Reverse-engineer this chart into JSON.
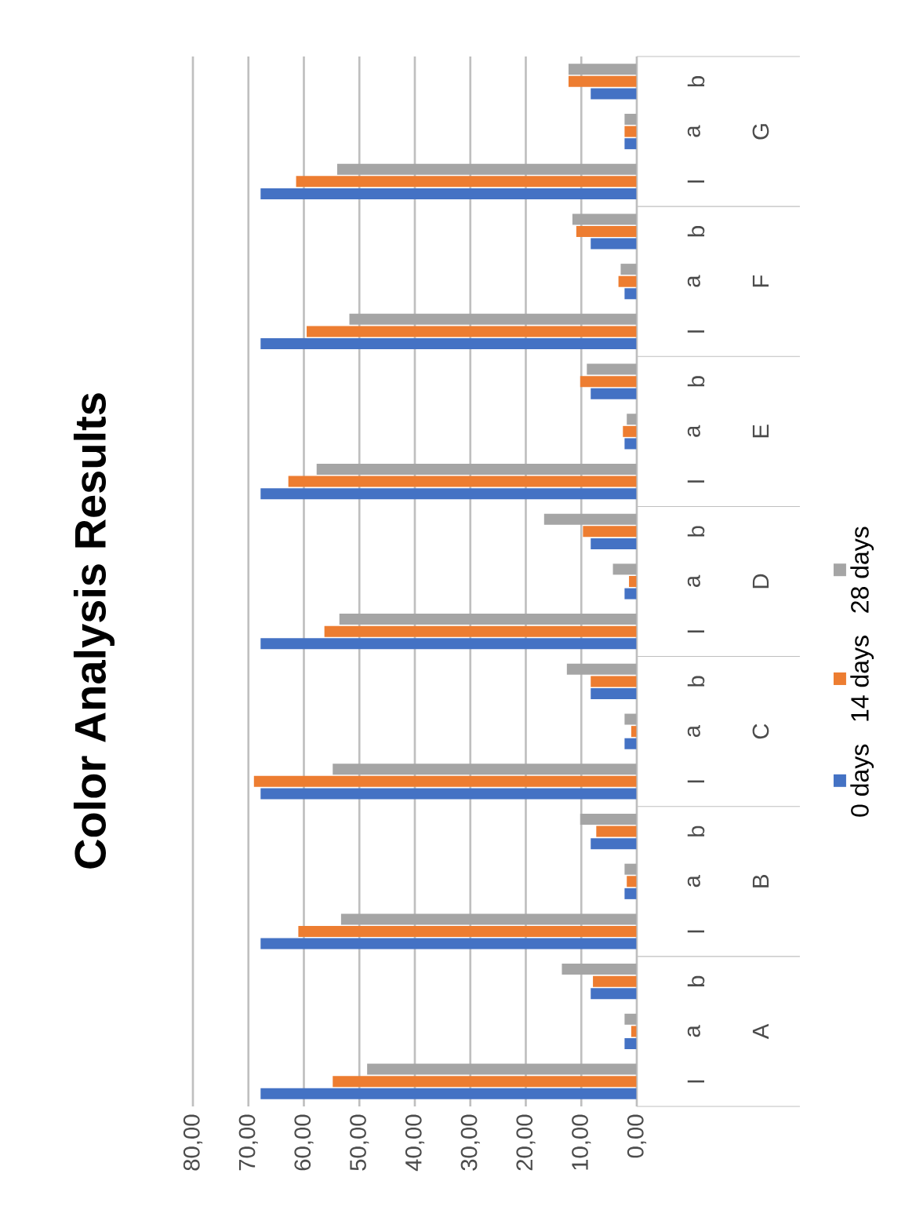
{
  "chart_data": {
    "type": "bar",
    "orientation": "horizontal",
    "title": "Color Analysis Results",
    "categories": [
      "b",
      "a",
      "l",
      "b",
      "a",
      "l",
      "b",
      "a",
      "l",
      "b",
      "a",
      "l",
      "b",
      "a",
      "l",
      "b",
      "a",
      "l",
      "b",
      "a",
      "l"
    ],
    "annotations": [
      "G",
      "F",
      "E",
      "D",
      "C",
      "B",
      "A"
    ],
    "series": [
      {
        "name": "0 days",
        "color": "#4472c4",
        "values": [
          8.3,
          2.2,
          67.8,
          8.3,
          2.2,
          67.8,
          8.3,
          2.2,
          67.8,
          8.3,
          2.2,
          67.8,
          8.3,
          2.2,
          67.8,
          8.3,
          2.2,
          67.8,
          8.3,
          2.2,
          67.8
        ]
      },
      {
        "name": "14 days",
        "color": "#ed7d31",
        "values": [
          12.3,
          2.2,
          61.4,
          10.9,
          3.3,
          59.5,
          10.2,
          2.5,
          62.8,
          9.7,
          1.4,
          56.3,
          8.3,
          1.0,
          69.0,
          7.3,
          1.8,
          61.0,
          7.9,
          1.0,
          54.8
        ]
      },
      {
        "name": "28 days",
        "color": "#a5a5a5",
        "values": [
          12.3,
          2.2,
          54.0,
          11.6,
          2.9,
          51.8,
          9.0,
          1.8,
          57.7,
          16.7,
          4.3,
          53.6,
          12.6,
          2.2,
          54.8,
          10.2,
          2.2,
          53.3,
          13.5,
          2.2,
          48.6
        ]
      }
    ],
    "xlim": [
      80,
      0
    ],
    "xticks": [
      {
        "value": 0,
        "label": "0,00"
      },
      {
        "value": 10,
        "label": "10,00"
      },
      {
        "value": 20,
        "label": "20,00"
      },
      {
        "value": 30,
        "label": "30,00"
      },
      {
        "value": 40,
        "label": "40,00"
      },
      {
        "value": 50,
        "label": "50,00"
      },
      {
        "value": 60,
        "label": "60,00"
      },
      {
        "value": 70,
        "label": "70,00"
      },
      {
        "value": 80,
        "label": "80,00"
      }
    ],
    "grid": "x",
    "legend": "right"
  }
}
